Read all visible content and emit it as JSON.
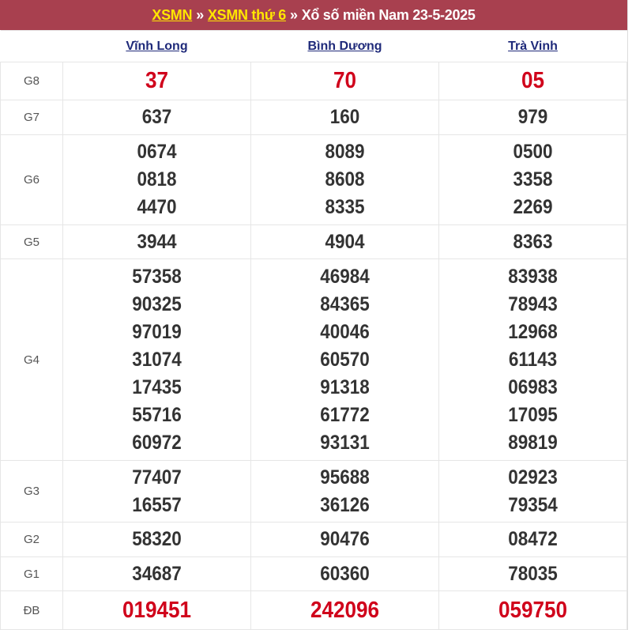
{
  "header": {
    "link1": "XSMN",
    "sep": "»",
    "link2": "XSMN thứ 6",
    "title": "Xổ số miền Nam 23-5-2025"
  },
  "provinces": [
    "Vĩnh Long",
    "Bình Dương",
    "Trà Vinh"
  ],
  "prizes": [
    {
      "label": "G8",
      "highlight": true,
      "values": [
        [
          "37"
        ],
        [
          "70"
        ],
        [
          "05"
        ]
      ]
    },
    {
      "label": "G7",
      "values": [
        [
          "637"
        ],
        [
          "160"
        ],
        [
          "979"
        ]
      ]
    },
    {
      "label": "G6",
      "values": [
        [
          "0674",
          "0818",
          "4470"
        ],
        [
          "8089",
          "8608",
          "8335"
        ],
        [
          "0500",
          "3358",
          "2269"
        ]
      ]
    },
    {
      "label": "G5",
      "values": [
        [
          "3944"
        ],
        [
          "4904"
        ],
        [
          "8363"
        ]
      ]
    },
    {
      "label": "G4",
      "values": [
        [
          "57358",
          "90325",
          "97019",
          "31074",
          "17435",
          "55716",
          "60972"
        ],
        [
          "46984",
          "84365",
          "40046",
          "60570",
          "91318",
          "61772",
          "93131"
        ],
        [
          "83938",
          "78943",
          "12968",
          "61143",
          "06983",
          "17095",
          "89819"
        ]
      ]
    },
    {
      "label": "G3",
      "values": [
        [
          "77407",
          "16557"
        ],
        [
          "95688",
          "36126"
        ],
        [
          "02923",
          "79354"
        ]
      ]
    },
    {
      "label": "G2",
      "values": [
        [
          "58320"
        ],
        [
          "90476"
        ],
        [
          "08472"
        ]
      ]
    },
    {
      "label": "G1",
      "values": [
        [
          "34687"
        ],
        [
          "60360"
        ],
        [
          "78035"
        ]
      ]
    },
    {
      "label": "ĐB",
      "highlight": true,
      "values": [
        [
          "019451"
        ],
        [
          "242096"
        ],
        [
          "059750"
        ]
      ]
    }
  ],
  "colors": {
    "header_bg": "#a8404f",
    "link_yellow": "#ffe600",
    "prize_red": "#d0021b",
    "province_link": "#1f2a7a"
  }
}
